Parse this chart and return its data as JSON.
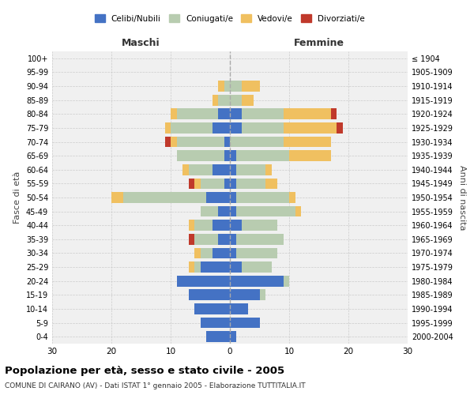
{
  "age_groups": [
    "0-4",
    "5-9",
    "10-14",
    "15-19",
    "20-24",
    "25-29",
    "30-34",
    "35-39",
    "40-44",
    "45-49",
    "50-54",
    "55-59",
    "60-64",
    "65-69",
    "70-74",
    "75-79",
    "80-84",
    "85-89",
    "90-94",
    "95-99",
    "100+"
  ],
  "birth_years": [
    "2000-2004",
    "1995-1999",
    "1990-1994",
    "1985-1989",
    "1980-1984",
    "1975-1979",
    "1970-1974",
    "1965-1969",
    "1960-1964",
    "1955-1959",
    "1950-1954",
    "1945-1949",
    "1940-1944",
    "1935-1939",
    "1930-1934",
    "1925-1929",
    "1920-1924",
    "1915-1919",
    "1910-1914",
    "1905-1909",
    "≤ 1904"
  ],
  "maschi": {
    "celibi": [
      4,
      5,
      6,
      7,
      9,
      5,
      3,
      2,
      3,
      2,
      4,
      1,
      3,
      1,
      1,
      3,
      2,
      0,
      0,
      0,
      0
    ],
    "coniugati": [
      0,
      0,
      0,
      0,
      0,
      1,
      2,
      4,
      3,
      3,
      14,
      4,
      4,
      8,
      8,
      7,
      7,
      2,
      1,
      0,
      0
    ],
    "vedovi": [
      0,
      0,
      0,
      0,
      0,
      1,
      1,
      0,
      1,
      0,
      2,
      1,
      1,
      0,
      1,
      1,
      1,
      1,
      1,
      0,
      0
    ],
    "divorziati": [
      0,
      0,
      0,
      0,
      0,
      0,
      0,
      1,
      0,
      0,
      0,
      1,
      0,
      0,
      1,
      0,
      0,
      0,
      0,
      0,
      0
    ]
  },
  "femmine": {
    "nubili": [
      1,
      5,
      3,
      5,
      9,
      2,
      1,
      1,
      2,
      1,
      1,
      1,
      1,
      1,
      0,
      2,
      2,
      0,
      0,
      0,
      0
    ],
    "coniugate": [
      0,
      0,
      0,
      1,
      1,
      5,
      7,
      8,
      6,
      10,
      9,
      5,
      5,
      9,
      9,
      7,
      7,
      2,
      2,
      0,
      0
    ],
    "vedove": [
      0,
      0,
      0,
      0,
      0,
      0,
      0,
      0,
      0,
      1,
      1,
      2,
      1,
      7,
      8,
      9,
      8,
      2,
      3,
      0,
      0
    ],
    "divorziate": [
      0,
      0,
      0,
      0,
      0,
      0,
      0,
      0,
      0,
      0,
      0,
      0,
      0,
      0,
      0,
      1,
      1,
      0,
      0,
      0,
      0
    ]
  },
  "colors": {
    "celibi_nubili": "#4472C4",
    "coniugati_e": "#B8CCB0",
    "vedovi_e": "#F0C060",
    "divorziati_e": "#C0392B"
  },
  "xlim": 30,
  "title": "Popolazione per età, sesso e stato civile - 2005",
  "subtitle": "COMUNE DI CAIRANO (AV) - Dati ISTAT 1° gennaio 2005 - Elaborazione TUTTITALIA.IT",
  "ylabel_left": "Fasce di età",
  "ylabel_right": "Anni di nascita",
  "xlabel_left": "Maschi",
  "xlabel_right": "Femmine",
  "legend_labels": [
    "Celibi/Nubili",
    "Coniugati/e",
    "Vedovi/e",
    "Divorziati/e"
  ],
  "bg_color": "#FFFFFF",
  "plot_bg_color": "#F0F0F0"
}
